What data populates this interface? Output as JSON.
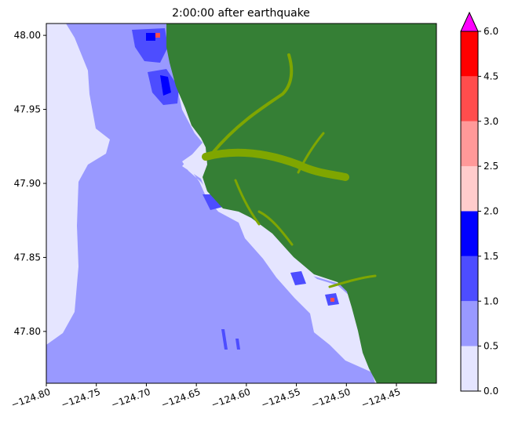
{
  "chart_data": {
    "type": "heatmap",
    "title": "2:00:00 after earthquake",
    "xlabel": "",
    "ylabel": "",
    "xlim": [
      -124.8,
      -124.41
    ],
    "ylim": [
      47.765,
      48.008
    ],
    "xticks": [
      -124.8,
      -124.75,
      -124.7,
      -124.65,
      -124.6,
      -124.55,
      -124.5,
      -124.45
    ],
    "xtick_labels": [
      "−124.80",
      "−124.75",
      "−124.70",
      "−124.65",
      "−124.60",
      "−124.55",
      "−124.50",
      "−124.45"
    ],
    "yticks": [
      47.8,
      47.85,
      47.9,
      47.95,
      48.0
    ],
    "ytick_labels": [
      "47.80",
      "47.85",
      "47.90",
      "47.95",
      "48.00"
    ],
    "land_color": "#357f35",
    "river_color": "#7fa600",
    "colorbar": {
      "levels": [
        0.0,
        0.5,
        1.0,
        1.5,
        2.0,
        2.5,
        3.0,
        4.5,
        6.0
      ],
      "level_labels": [
        "0.0",
        "0.5",
        "1.0",
        "1.5",
        "2.0",
        "2.5",
        "3.0",
        "4.5",
        "6.0"
      ],
      "colors": [
        "#e5e5ff",
        "#9999ff",
        "#4d4dff",
        "#0000ff",
        "#ffcccc",
        "#ff9999",
        "#ff4d4d",
        "#ff0000"
      ],
      "extend_color": "#ff00ff",
      "extend": "max"
    }
  }
}
